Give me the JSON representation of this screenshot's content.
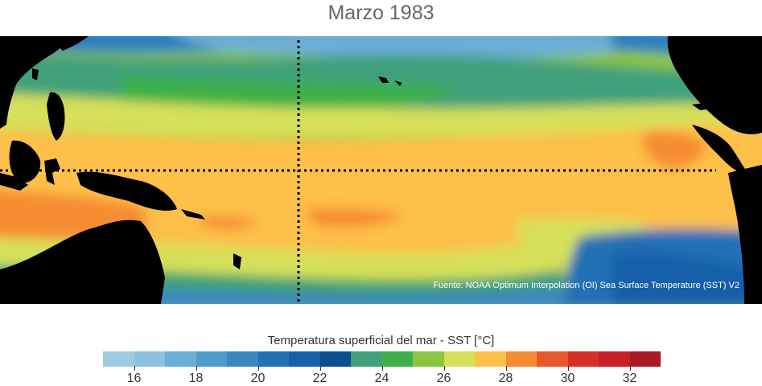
{
  "title": "Marzo 1983",
  "source": "Fuente: NOAA Optimum Interpolation (OI) Sea Surface Temperature (SST) V2",
  "colorbar": {
    "label": "Temperatura superficial del mar - SST  [°C]",
    "min": 15,
    "max": 33,
    "colors": [
      "#9ecae1",
      "#8ec0e0",
      "#6aaed6",
      "#4f9bcb",
      "#3b87c0",
      "#2171b5",
      "#1561a9",
      "#0b4f8f",
      "#41a07a",
      "#3cb04a",
      "#8cc63f",
      "#d6e05a",
      "#fdc04a",
      "#f58d33",
      "#e8582a",
      "#d62f27",
      "#c81f2a",
      "#a81923"
    ],
    "ticks": [
      "16",
      "18",
      "20",
      "22",
      "24",
      "26",
      "28",
      "30",
      "32"
    ]
  },
  "map": {
    "region": "Pacífico tropical",
    "land_color": "#000000",
    "reference_lines": [
      "equator",
      "180-meridian"
    ]
  }
}
